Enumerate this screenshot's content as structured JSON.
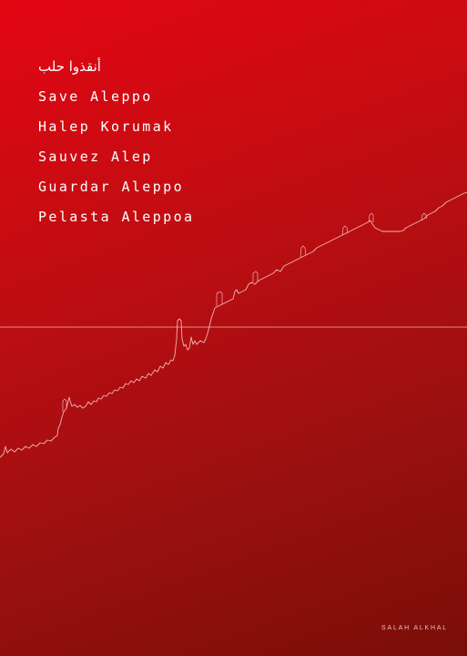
{
  "phrases": [
    "أنقذوا حلب",
    "Save Aleppo",
    "Halep Korumak",
    "Sauvez Alep",
    "Guardar Aleppo",
    "Pelasta Aleppoa"
  ],
  "credit": "SALAH ALKHAL",
  "colors": {
    "background_top": "#e30613",
    "background_bottom": "#7a0e08",
    "text": "#ffffff",
    "line": "#f0b4b4"
  }
}
